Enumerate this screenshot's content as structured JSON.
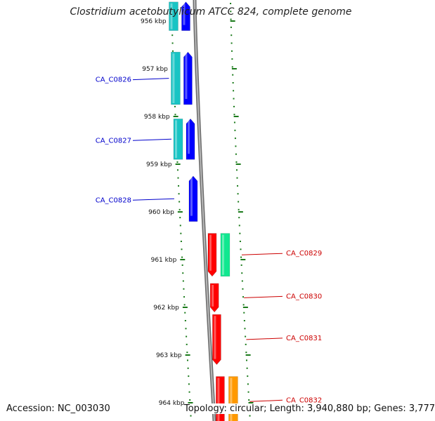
{
  "title": "Clostridium acetobutylicum ATCC 824, complete genome",
  "footer": {
    "accession": "Accession: NC_003030",
    "topology": "Topology: circular; Length: 3,940,880 bp; Genes: 3,777"
  },
  "scale": {
    "ticks": [
      {
        "kbp": 956,
        "label": "956 kbp"
      },
      {
        "kbp": 957,
        "label": "957 kbp"
      },
      {
        "kbp": 958,
        "label": "958 kbp"
      },
      {
        "kbp": 959,
        "label": "959 kbp"
      },
      {
        "kbp": 960,
        "label": "960 kbp"
      },
      {
        "kbp": 961,
        "label": "961 kbp"
      },
      {
        "kbp": 962,
        "label": "962 kbp"
      },
      {
        "kbp": 963,
        "label": "963 kbp"
      },
      {
        "kbp": 964,
        "label": "964 kbp"
      }
    ]
  },
  "genes": [
    {
      "label": "",
      "strand": "-",
      "start_kbp": 955.6,
      "end_kbp": 956.2,
      "has_cds": true
    },
    {
      "label": "CA_C0826",
      "strand": "-",
      "start_kbp": 956.65,
      "end_kbp": 957.75,
      "has_cds": true
    },
    {
      "label": "CA_C0827",
      "strand": "-",
      "start_kbp": 958.05,
      "end_kbp": 958.9,
      "has_cds": true
    },
    {
      "label": "CA_C0828",
      "strand": "-",
      "start_kbp": 959.25,
      "end_kbp": 960.2,
      "has_cds": false
    },
    {
      "label": "CA_C0829",
      "strand": "+",
      "start_kbp": 960.45,
      "end_kbp": 961.35,
      "has_cds": true
    },
    {
      "label": "CA_C0830",
      "strand": "+",
      "start_kbp": 961.5,
      "end_kbp": 962.1,
      "has_cds": false
    },
    {
      "label": "CA_C0831",
      "strand": "+",
      "start_kbp": 962.15,
      "end_kbp": 963.2,
      "has_cds": false
    },
    {
      "label": "CA_C0832",
      "strand": "+",
      "start_kbp": 963.45,
      "end_kbp": 964.5,
      "has_cds": true
    }
  ],
  "colors": {
    "backbone": "#888888",
    "ticks": "#1a7a1a",
    "forward_gene": "#ff0000",
    "reverse_gene": "#0000ff",
    "reverse_cds": "#18c4c4",
    "forward_cds_a": "#10e890",
    "forward_cds_b": "#ff9900",
    "forward_label": "#cc0000",
    "reverse_label": "#0000cc"
  }
}
